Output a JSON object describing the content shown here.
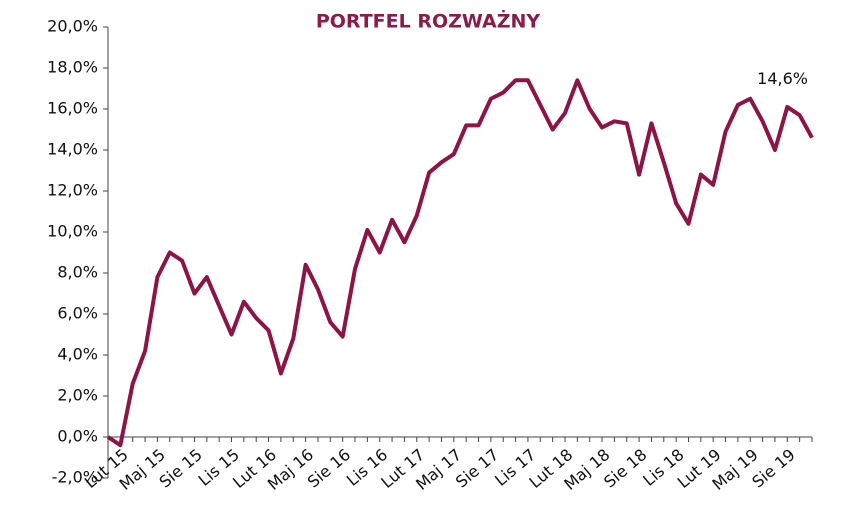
{
  "chart_data": {
    "type": "line",
    "title": "PORTFEL ROZWAŻNY",
    "categories": [
      null,
      "Lut 15",
      null,
      null,
      "Maj 15",
      null,
      null,
      "Sie 15",
      null,
      null,
      "Lis 15",
      null,
      null,
      "Lut 16",
      null,
      null,
      "Maj 16",
      null,
      null,
      "Sie 16",
      null,
      null,
      "Lis 16",
      null,
      null,
      "Lut 17",
      null,
      null,
      "Maj 17",
      null,
      null,
      "Sie 17",
      null,
      null,
      "Lis 17",
      null,
      null,
      "Lut 18",
      null,
      null,
      "Maj 18",
      null,
      null,
      "Sie 18",
      null,
      null,
      "Lis 18",
      null,
      null,
      "Lut 19",
      null,
      null,
      "Maj 19",
      null,
      null,
      "Sie 19",
      null,
      null
    ],
    "series": [
      {
        "color": "#8c1446",
        "values": [
          0.0,
          -0.4,
          2.6,
          4.2,
          7.8,
          9.0,
          8.6,
          7.0,
          7.8,
          6.4,
          5.0,
          6.6,
          5.8,
          5.2,
          3.1,
          4.8,
          8.4,
          7.2,
          5.6,
          4.9,
          8.2,
          10.1,
          9.0,
          10.6,
          9.5,
          10.8,
          12.9,
          13.4,
          13.8,
          15.2,
          15.2,
          16.5,
          16.8,
          17.4,
          17.4,
          16.2,
          15.0,
          15.8,
          17.4,
          16.0,
          15.1,
          15.4,
          15.3,
          12.8,
          15.3,
          13.4,
          11.4,
          10.4,
          12.8,
          12.3,
          14.9,
          16.2,
          16.5,
          15.4,
          14.0,
          16.1,
          15.7,
          14.6
        ],
        "value_labels": [
          null,
          null,
          null,
          null,
          null,
          null,
          null,
          null,
          null,
          null,
          null,
          null,
          null,
          null,
          null,
          null,
          null,
          null,
          null,
          null,
          null,
          null,
          null,
          null,
          null,
          null,
          null,
          null,
          null,
          null,
          null,
          null,
          null,
          null,
          null,
          null,
          null,
          null,
          null,
          null,
          null,
          null,
          null,
          null,
          null,
          null,
          null,
          null,
          null,
          null,
          null,
          null,
          null,
          null,
          null,
          null,
          null,
          "14,6%"
        ]
      }
    ],
    "ylim": [
      -2,
      20
    ],
    "yticks": [
      {
        "value": -2,
        "label": "-2,0%"
      },
      {
        "value": 0,
        "label": "0,0%"
      },
      {
        "value": 2,
        "label": "2,0%"
      },
      {
        "value": 4,
        "label": "4,0%"
      },
      {
        "value": 6,
        "label": "6,0%"
      },
      {
        "value": 8,
        "label": "8,0%"
      },
      {
        "value": 10,
        "label": "10,0%"
      },
      {
        "value": 12,
        "label": "12,0%"
      },
      {
        "value": 14,
        "label": "14,0%"
      },
      {
        "value": 16,
        "label": "16,0%"
      },
      {
        "value": 18,
        "label": "18,0%"
      },
      {
        "value": 20,
        "label": "20,0%"
      }
    ]
  }
}
